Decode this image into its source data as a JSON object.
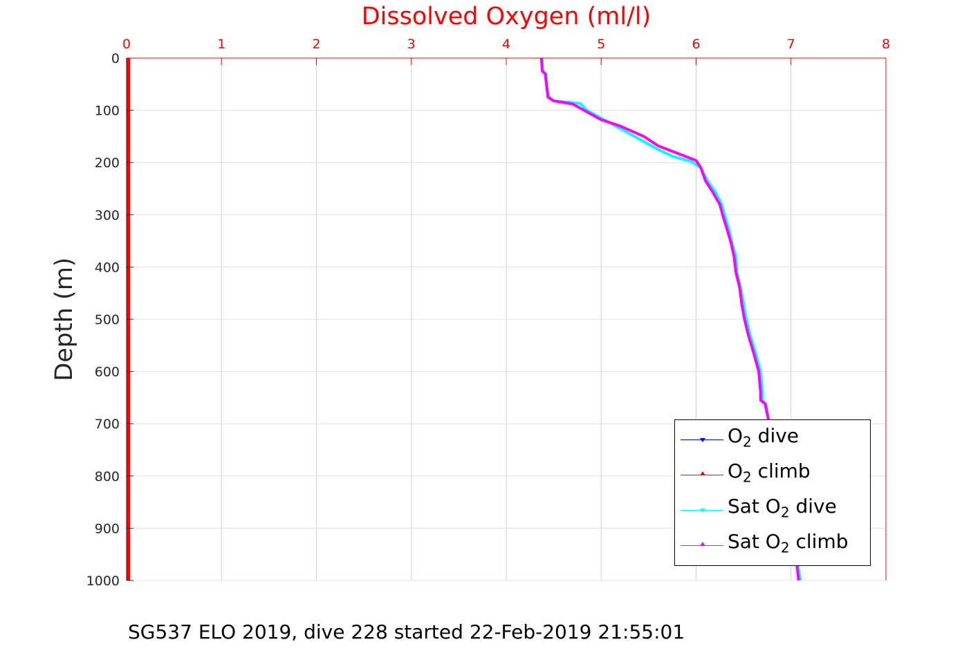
{
  "chart_data": {
    "type": "line",
    "title": "Dissolved Oxygen (ml/l)",
    "ylabel": "Depth (m)",
    "xlim": [
      0,
      8
    ],
    "ylim": [
      0,
      1000
    ],
    "y_reversed": true,
    "x_axis_position": "top",
    "x_ticks": [
      "0",
      "1",
      "2",
      "3",
      "4",
      "5",
      "6",
      "7",
      "8"
    ],
    "y_ticks": [
      "0",
      "100",
      "200",
      "300",
      "400",
      "500",
      "600",
      "700",
      "800",
      "900",
      "1000"
    ],
    "grid": true,
    "legend_placement": "bottom-right",
    "colors": {
      "title": "#ff0000",
      "x_ticks": "#ff0000",
      "axis": "#ff0000",
      "grid": "#e4c8cc"
    },
    "series": [
      {
        "name": "O2 dive",
        "name_parts": [
          "O",
          "2",
          " dive"
        ],
        "color": "#0000ff",
        "marker": "triangle-down",
        "points": [
          [
            0.02,
            0
          ],
          [
            0.02,
            1000
          ]
        ]
      },
      {
        "name": "O2 climb",
        "name_parts": [
          "O",
          "2",
          " climb"
        ],
        "color": "#ff0000",
        "marker": "triangle-up",
        "points": [
          [
            0.02,
            0
          ],
          [
            0.02,
            1000
          ]
        ]
      },
      {
        "name": "Sat O2 dive",
        "name_parts": [
          "Sat O",
          "2",
          " dive"
        ],
        "color": "#00ffff",
        "marker": "triangle-down",
        "points": [
          [
            4.38,
            0
          ],
          [
            4.38,
            25
          ],
          [
            4.42,
            30
          ],
          [
            4.43,
            60
          ],
          [
            4.45,
            75
          ],
          [
            4.5,
            82
          ],
          [
            4.78,
            87
          ],
          [
            4.85,
            100
          ],
          [
            5.05,
            120
          ],
          [
            5.25,
            140
          ],
          [
            5.45,
            160
          ],
          [
            5.6,
            175
          ],
          [
            5.75,
            188
          ],
          [
            5.95,
            198
          ],
          [
            6.05,
            210
          ],
          [
            6.12,
            235
          ],
          [
            6.2,
            255
          ],
          [
            6.27,
            280
          ],
          [
            6.3,
            300
          ],
          [
            6.35,
            330
          ],
          [
            6.38,
            355
          ],
          [
            6.42,
            380
          ],
          [
            6.43,
            410
          ],
          [
            6.47,
            440
          ],
          [
            6.5,
            470
          ],
          [
            6.53,
            500
          ],
          [
            6.57,
            530
          ],
          [
            6.62,
            560
          ],
          [
            6.65,
            580
          ],
          [
            6.68,
            600
          ],
          [
            6.7,
            640
          ],
          [
            6.7,
            655
          ],
          [
            6.72,
            660
          ],
          [
            6.76,
            690
          ],
          [
            6.8,
            720
          ],
          [
            6.85,
            760
          ],
          [
            6.9,
            800
          ],
          [
            6.95,
            850
          ],
          [
            7.0,
            900
          ],
          [
            7.05,
            950
          ],
          [
            7.1,
            1000
          ]
        ]
      },
      {
        "name": "Sat O2 climb",
        "name_parts": [
          "Sat O",
          "2",
          " climb"
        ],
        "color": "#ff00ff",
        "marker": "triangle-up",
        "points": [
          [
            4.37,
            0
          ],
          [
            4.38,
            25
          ],
          [
            4.41,
            30
          ],
          [
            4.43,
            60
          ],
          [
            4.44,
            75
          ],
          [
            4.5,
            82
          ],
          [
            4.7,
            88
          ],
          [
            4.82,
            100
          ],
          [
            5.0,
            118
          ],
          [
            5.2,
            130
          ],
          [
            5.45,
            150
          ],
          [
            5.6,
            168
          ],
          [
            5.8,
            182
          ],
          [
            6.0,
            196
          ],
          [
            6.05,
            210
          ],
          [
            6.1,
            235
          ],
          [
            6.17,
            255
          ],
          [
            6.25,
            280
          ],
          [
            6.28,
            300
          ],
          [
            6.33,
            330
          ],
          [
            6.37,
            355
          ],
          [
            6.4,
            380
          ],
          [
            6.42,
            410
          ],
          [
            6.46,
            440
          ],
          [
            6.48,
            470
          ],
          [
            6.51,
            500
          ],
          [
            6.55,
            530
          ],
          [
            6.6,
            560
          ],
          [
            6.63,
            580
          ],
          [
            6.66,
            600
          ],
          [
            6.68,
            640
          ],
          [
            6.68,
            655
          ],
          [
            6.73,
            662
          ],
          [
            6.76,
            690
          ],
          [
            6.8,
            720
          ],
          [
            6.85,
            760
          ],
          [
            6.9,
            800
          ],
          [
            6.95,
            850
          ],
          [
            7.0,
            900
          ],
          [
            7.05,
            950
          ],
          [
            7.08,
            1000
          ]
        ]
      }
    ]
  },
  "caption": "SG537 ELO 2019, dive 228 started 22-Feb-2019 21:55:01"
}
